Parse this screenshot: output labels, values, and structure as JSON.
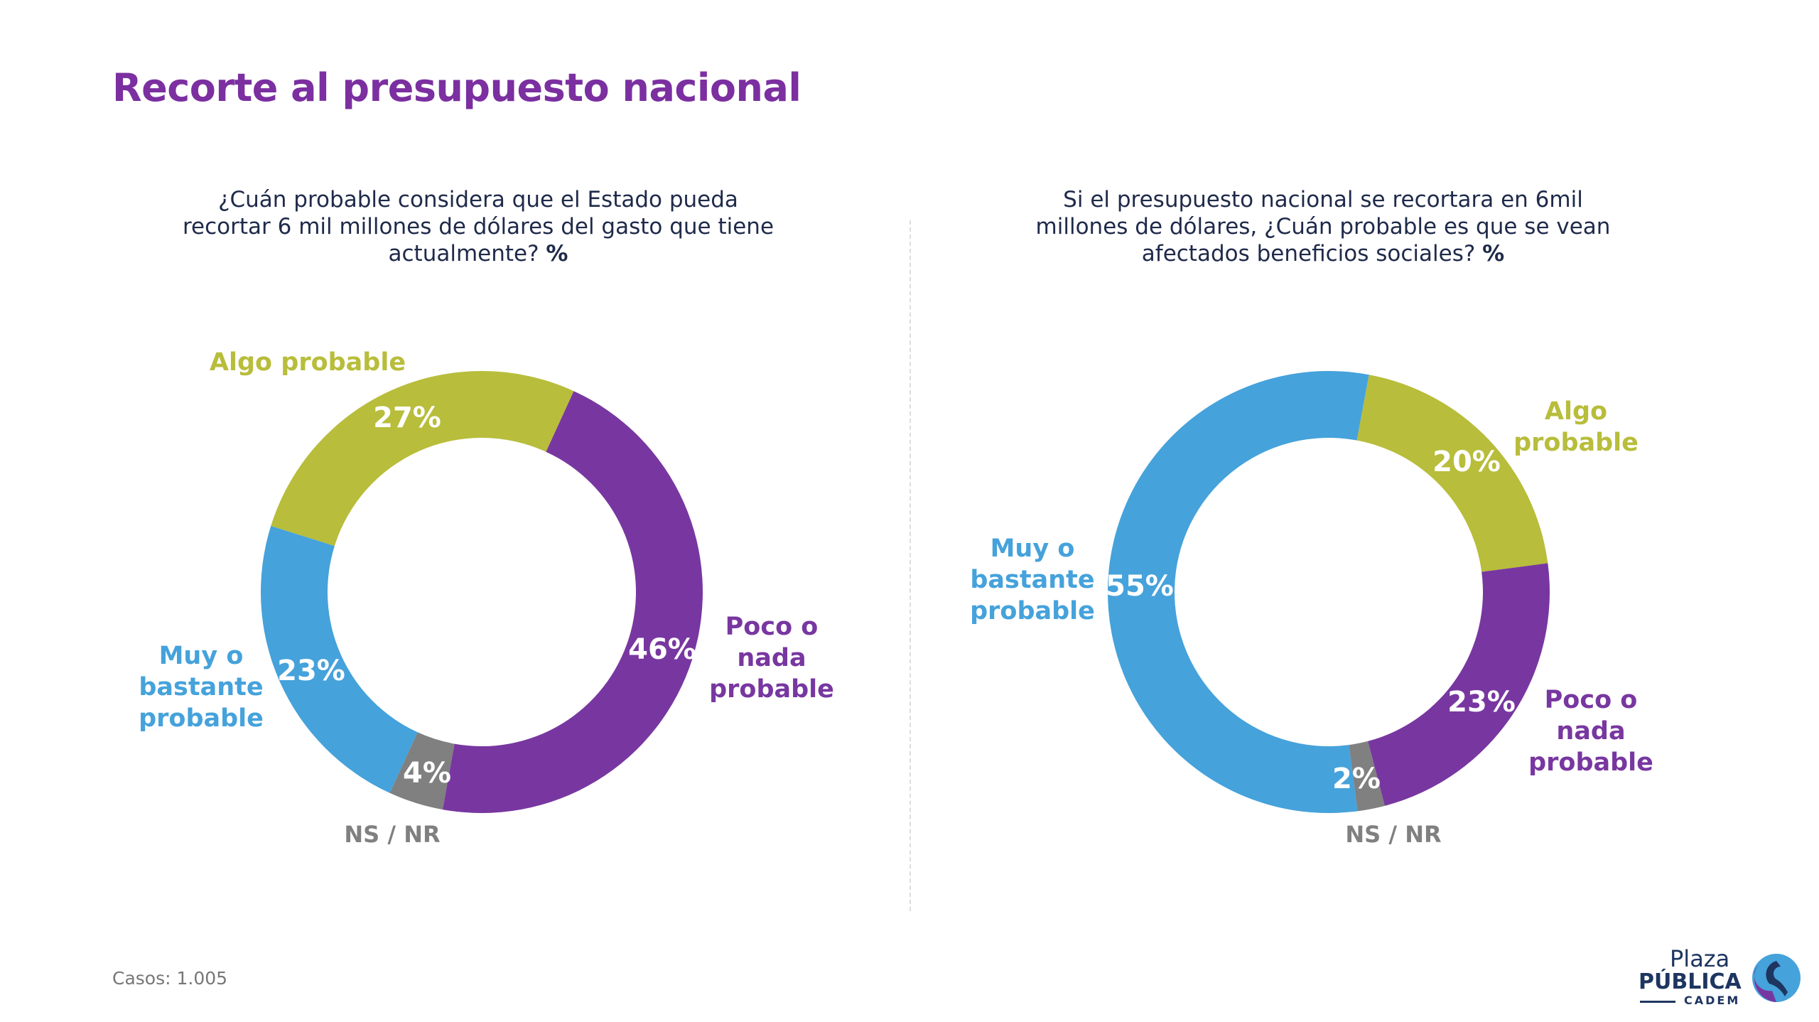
{
  "title": "Recorte al presupuesto nacional",
  "footer": {
    "casos": "Casos: 1.005"
  },
  "logo": {
    "line1": "Plaza",
    "line2": "PÚBLICA",
    "line3": "CADEM"
  },
  "colors": {
    "poco": "#7837A0",
    "algo": "#B8BD3B",
    "muy": "#45A2DB",
    "ns": "#808080",
    "title": "#7B2FA0"
  },
  "chart_data": [
    {
      "type": "pie",
      "donut": true,
      "title": "¿Cuán probable considera que el Estado pueda recortar 6 mil millones de dólares del gasto que tiene actualmente?",
      "title_suffix": "%",
      "categories": [
        "Poco o nada probable",
        "NS / NR",
        "Muy o bastante probable",
        "Algo probable"
      ],
      "values": [
        46,
        4,
        23,
        27
      ],
      "labels": [
        "46%",
        "4%",
        "23%",
        "27%"
      ]
    },
    {
      "type": "pie",
      "donut": true,
      "title": "Si el presupuesto nacional se recortara en 6mil millones de dólares, ¿Cuán probable es que se vean afectados beneficios sociales?",
      "title_suffix": "%",
      "categories": [
        "Algo probable",
        "Poco o nada probable",
        "NS / NR",
        "Muy o bastante probable"
      ],
      "values": [
        20,
        23,
        2,
        55
      ],
      "labels": [
        "20%",
        "23%",
        "2%",
        "55%"
      ]
    }
  ]
}
